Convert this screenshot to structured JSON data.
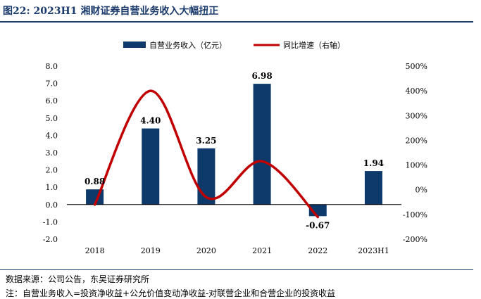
{
  "header": {
    "title": "图22:  2023H1 湘财证券自营业务收入大幅扭正"
  },
  "footer": {
    "source": "数据来源：公司公告，东吴证券研究所",
    "note": "注：自营业务收入=投资净收益+公允价值变动净收益-对联营企业和合营企业的投资收益"
  },
  "chart_data": {
    "type": "bar",
    "categories": [
      "2018",
      "2019",
      "2020",
      "2021",
      "2022",
      "2023H1"
    ],
    "series": [
      {
        "name": "自营业务收入（亿元）",
        "type": "bar",
        "axis": "left",
        "values": [
          0.88,
          4.4,
          3.25,
          6.98,
          -0.67,
          1.94
        ],
        "color": "#0d3a6b"
      },
      {
        "name": "同比增速（右轴）",
        "type": "line",
        "axis": "right",
        "smooth": true,
        "values": [
          -60,
          400,
          -30,
          115,
          -110,
          null
        ],
        "color": "#c00000"
      }
    ],
    "data_labels": [
      "0.88",
      "4.40",
      "3.25",
      "6.98",
      "-0.67",
      "1.94"
    ],
    "y_left": {
      "min": -2.0,
      "max": 8.0,
      "step": 1.0,
      "ticks": [
        "8.0",
        "7.0",
        "6.0",
        "5.0",
        "4.0",
        "3.0",
        "2.0",
        "1.0",
        "0.0",
        "-1.0",
        "-2.0"
      ]
    },
    "y_right": {
      "min": -200,
      "max": 500,
      "step": 100,
      "ticks": [
        "500%",
        "400%",
        "300%",
        "200%",
        "100%",
        "0%",
        "-100%",
        "-200%"
      ]
    },
    "legend_position": "top-center",
    "grid": false
  }
}
